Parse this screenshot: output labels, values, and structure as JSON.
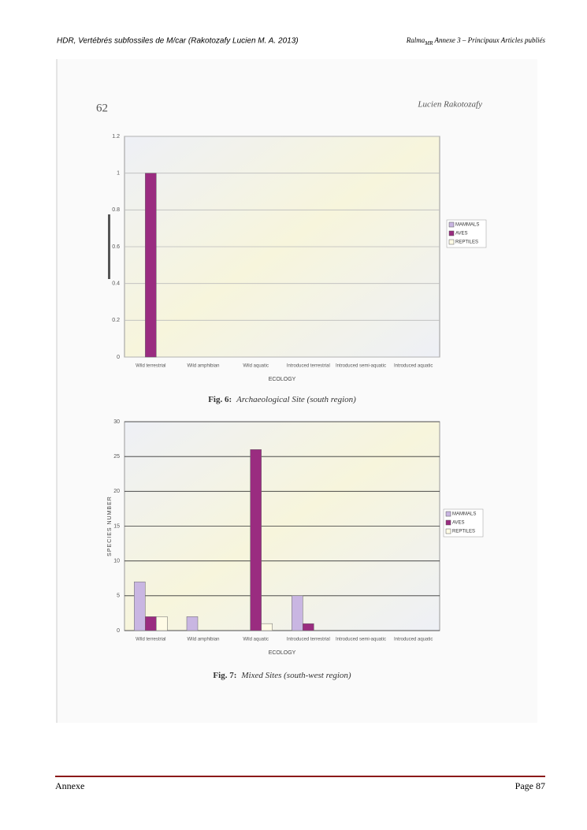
{
  "document": {
    "header_left": "HDR, Vertébrés subfossiles de M/car (Rakotozafy  Lucien M. A. 2013)",
    "header_right_a": "Ralma",
    "header_right_sub": "MR",
    "header_right_b": " Annexe 3 – Principaux Articles publiés",
    "scan_page": "62",
    "scan_author": "Lucien Rakotozafy",
    "footer_left": "Annexe",
    "footer_right": "Page 87"
  },
  "chart_data": [
    {
      "type": "bar",
      "caption_label": "Fig.  6:",
      "caption": "Archaeological Site (south region)",
      "x_label": "ECOLOGY",
      "categories": [
        "Wild terrestrial",
        "Wild amphibian",
        "Wild aquatic",
        "Introduced terrestrial",
        "Introduced semi-aquatic",
        "Introduced aquatic"
      ],
      "series": [
        {
          "name": "MAMMALS",
          "color": "#c9b6e2",
          "values": [
            0,
            0,
            0,
            0,
            0,
            0
          ]
        },
        {
          "name": "AVES",
          "color": "#9a2c80",
          "values": [
            1,
            0,
            0,
            0,
            0,
            0
          ]
        },
        {
          "name": "REPTILES",
          "color": "#fffbe6",
          "values": [
            0,
            0,
            0,
            0,
            0,
            0
          ]
        }
      ],
      "ylim": [
        0,
        1.2
      ],
      "yticks": [
        0,
        0.2,
        0.4,
        0.6,
        0.8,
        1,
        1.2
      ],
      "grid": true,
      "legend": "right"
    },
    {
      "type": "bar",
      "caption_label": "Fig. 7:",
      "caption": "Mixed Sites (south-west region)",
      "x_label": "ECOLOGY",
      "y_label": "SPECIES NUMBER",
      "categories": [
        "Wild terrestrial",
        "Wild amphibian",
        "Wild aquatic",
        "Introduced terrestrial",
        "Introduced semi-aquatic",
        "Introduced aquatic"
      ],
      "series": [
        {
          "name": "MAMMALS",
          "color": "#c9b6e2",
          "values": [
            7,
            2,
            0,
            5,
            0,
            0
          ]
        },
        {
          "name": "AVES",
          "color": "#9a2c80",
          "values": [
            2,
            0,
            26,
            1,
            0,
            0
          ]
        },
        {
          "name": "REPTILES",
          "color": "#fffbe6",
          "values": [
            2,
            0,
            1,
            0,
            0,
            0
          ]
        }
      ],
      "ylim": [
        0,
        30
      ],
      "yticks": [
        0,
        5,
        10,
        15,
        20,
        25,
        30
      ],
      "grid": true,
      "legend": "right"
    }
  ]
}
